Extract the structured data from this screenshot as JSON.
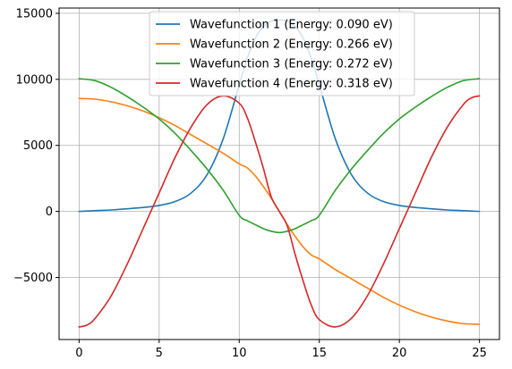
{
  "chart_data": {
    "type": "line",
    "title": "",
    "xlabel": "",
    "ylabel": "",
    "xlim": [
      -1.25,
      26.25
    ],
    "ylim": [
      -9700,
      15400
    ],
    "grid": true,
    "legend_placement": "upper-center",
    "x_ticks": [
      0,
      5,
      10,
      15,
      20,
      25
    ],
    "x_tick_labels": [
      "0",
      "5",
      "10",
      "15",
      "20",
      "25"
    ],
    "y_ticks": [
      -5000,
      0,
      5000,
      10000,
      15000
    ],
    "y_tick_labels": [
      "−5000",
      "0",
      "5000",
      "10000",
      "15000"
    ],
    "series": [
      {
        "name": "Wavefunction 1 (Energy: 0.090 eV)",
        "color": "#1f77b4",
        "points": [
          [
            0,
            0
          ],
          [
            1,
            60
          ],
          [
            2,
            110
          ],
          [
            3,
            200
          ],
          [
            4,
            300
          ],
          [
            5,
            450
          ],
          [
            6,
            750
          ],
          [
            7,
            1400
          ],
          [
            8,
            2800
          ],
          [
            9,
            5500
          ],
          [
            10,
            9600
          ],
          [
            10.5,
            11600
          ],
          [
            11,
            13100
          ],
          [
            11.5,
            14000
          ],
          [
            12,
            14400
          ],
          [
            12.5,
            14500
          ],
          [
            13,
            14400
          ],
          [
            13.5,
            14000
          ],
          [
            14,
            13100
          ],
          [
            14.5,
            11600
          ],
          [
            15,
            9600
          ],
          [
            16,
            5500
          ],
          [
            17,
            2800
          ],
          [
            18,
            1400
          ],
          [
            19,
            750
          ],
          [
            20,
            450
          ],
          [
            21,
            300
          ],
          [
            22,
            200
          ],
          [
            23,
            110
          ],
          [
            24,
            60
          ],
          [
            25,
            0
          ]
        ]
      },
      {
        "name": "Wavefunction 2 (Energy: 0.266 eV)",
        "color": "#ff7f0e",
        "points": [
          [
            0,
            8550
          ],
          [
            1,
            8500
          ],
          [
            2,
            8300
          ],
          [
            3,
            8000
          ],
          [
            4,
            7600
          ],
          [
            5,
            7100
          ],
          [
            6,
            6500
          ],
          [
            7,
            5800
          ],
          [
            8,
            5100
          ],
          [
            9,
            4400
          ],
          [
            10,
            3600
          ],
          [
            10.5,
            3300
          ],
          [
            11,
            2700
          ],
          [
            11.5,
            1900
          ],
          [
            12,
            1000
          ],
          [
            12.5,
            0
          ],
          [
            13,
            -1000
          ],
          [
            13.5,
            -1900
          ],
          [
            14,
            -2700
          ],
          [
            14.5,
            -3300
          ],
          [
            15,
            -3600
          ],
          [
            16,
            -4400
          ],
          [
            17,
            -5100
          ],
          [
            18,
            -5800
          ],
          [
            19,
            -6500
          ],
          [
            20,
            -7100
          ],
          [
            21,
            -7600
          ],
          [
            22,
            -8000
          ],
          [
            23,
            -8300
          ],
          [
            24,
            -8500
          ],
          [
            25,
            -8550
          ]
        ]
      },
      {
        "name": "Wavefunction 3 (Energy: 0.272 eV)",
        "color": "#2ca02c",
        "points": [
          [
            0,
            10050
          ],
          [
            1,
            9900
          ],
          [
            2,
            9400
          ],
          [
            3,
            8700
          ],
          [
            4,
            7900
          ],
          [
            5,
            7000
          ],
          [
            6,
            5900
          ],
          [
            7,
            4600
          ],
          [
            8,
            3200
          ],
          [
            9,
            1600
          ],
          [
            10,
            -300
          ],
          [
            10.5,
            -700
          ],
          [
            11,
            -1000
          ],
          [
            11.5,
            -1300
          ],
          [
            12,
            -1500
          ],
          [
            12.5,
            -1600
          ],
          [
            13,
            -1500
          ],
          [
            13.5,
            -1300
          ],
          [
            14,
            -1000
          ],
          [
            14.5,
            -700
          ],
          [
            15,
            -300
          ],
          [
            16,
            1600
          ],
          [
            17,
            3200
          ],
          [
            18,
            4600
          ],
          [
            19,
            5900
          ],
          [
            20,
            7000
          ],
          [
            21,
            7900
          ],
          [
            22,
            8700
          ],
          [
            23,
            9400
          ],
          [
            24,
            9900
          ],
          [
            25,
            10050
          ]
        ]
      },
      {
        "name": "Wavefunction 4 (Energy: 0.318 eV)",
        "color": "#d62728",
        "points": [
          [
            0,
            -8750
          ],
          [
            0.5,
            -8600
          ],
          [
            1,
            -8100
          ],
          [
            2,
            -6400
          ],
          [
            3,
            -4000
          ],
          [
            4,
            -1300
          ],
          [
            5,
            1400
          ],
          [
            6,
            4100
          ],
          [
            7,
            6400
          ],
          [
            8,
            8100
          ],
          [
            9,
            8750
          ],
          [
            10,
            8200
          ],
          [
            10.5,
            7100
          ],
          [
            11,
            5300
          ],
          [
            11.5,
            3300
          ],
          [
            12,
            1100
          ],
          [
            12.5,
            0
          ],
          [
            13,
            -1100
          ],
          [
            13.5,
            -3300
          ],
          [
            14,
            -5300
          ],
          [
            14.5,
            -7100
          ],
          [
            15,
            -8200
          ],
          [
            16,
            -8750
          ],
          [
            17,
            -8100
          ],
          [
            18,
            -6400
          ],
          [
            19,
            -4000
          ],
          [
            20,
            -1300
          ],
          [
            21,
            1400
          ],
          [
            22,
            4100
          ],
          [
            23,
            6400
          ],
          [
            24,
            8100
          ],
          [
            24.5,
            8600
          ],
          [
            25,
            8750
          ]
        ]
      }
    ]
  }
}
